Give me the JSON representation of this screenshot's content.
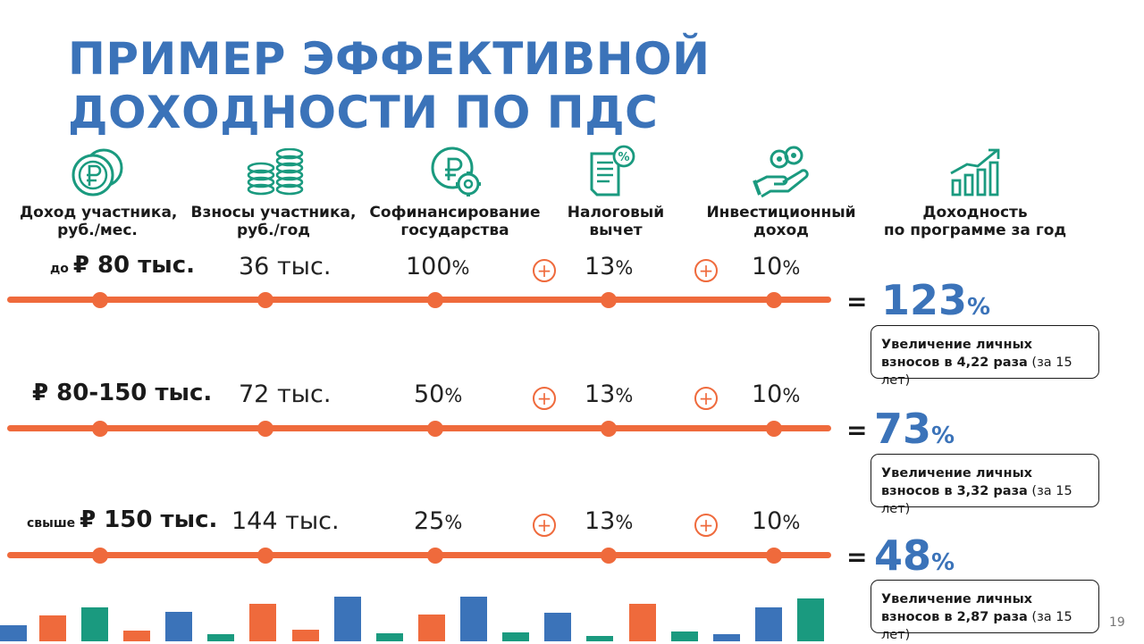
{
  "title": "ПРИМЕР ЭФФЕКТИВНОЙ ДОХОДНОСТИ ПО ПДС",
  "columns": {
    "income": [
      "Доход участника,",
      "руб./мес."
    ],
    "contrib": [
      "Взносы участника,",
      "руб./год"
    ],
    "cofin": [
      "Софинансирование",
      "государства"
    ],
    "tax": [
      "Налоговый",
      "вычет"
    ],
    "invest": [
      "Инвестиционный",
      "доход"
    ],
    "yield": [
      "Доходность",
      "по программе за год"
    ]
  },
  "pct_sign": "%",
  "plus_sign": "+",
  "equals_sign": "=",
  "rows": [
    {
      "income_prefix": "до ",
      "income_amount": "₽ 80 тыс.",
      "contrib": "36 тыс.",
      "cofin": "100",
      "tax": "13",
      "invest": "10",
      "result": "123",
      "note_line1": "Увеличение личных",
      "note_line2_bold": "взносов в 4,22 раза",
      "note_line2_rest": " (за 15 лет)"
    },
    {
      "income_prefix": "",
      "income_amount": "₽ 80-150 тыс.",
      "contrib": "72 тыс.",
      "cofin": "50",
      "tax": "13",
      "invest": "10",
      "result": "73",
      "note_line1": "Увеличение личных",
      "note_line2_bold": "взносов в 3,32 раза",
      "note_line2_rest": " (за 15 лет)"
    },
    {
      "income_prefix": "свыше ",
      "income_amount": "₽ 150 тыс.",
      "contrib": "144 тыс.",
      "cofin": "25",
      "tax": "13",
      "invest": "10",
      "result": "48",
      "note_line1": "Увеличение личных",
      "note_line2_bold": "взносов в 2,87 раза",
      "note_line2_rest": " (за 15 лет)"
    }
  ],
  "page_number": "19",
  "colors": {
    "blue": "#3b73b9",
    "green": "#1a9a7f",
    "orange": "#ef6a3c",
    "dark": "#1a1a1a"
  },
  "icons": [
    "ruble-coins-icon",
    "coin-stacks-icon",
    "ruble-gear-icon",
    "tax-document-percent-icon",
    "hand-coins-icon",
    "growth-chart-icon"
  ]
}
